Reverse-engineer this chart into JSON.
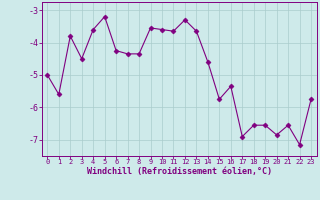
{
  "x": [
    0,
    1,
    2,
    3,
    4,
    5,
    6,
    7,
    8,
    9,
    10,
    11,
    12,
    13,
    14,
    15,
    16,
    17,
    18,
    19,
    20,
    21,
    22,
    23
  ],
  "y": [
    -5.0,
    -5.6,
    -3.8,
    -4.5,
    -3.6,
    -3.2,
    -4.25,
    -4.35,
    -4.35,
    -3.55,
    -3.6,
    -3.65,
    -3.3,
    -3.65,
    -4.6,
    -5.75,
    -5.35,
    -6.9,
    -6.55,
    -6.55,
    -6.85,
    -6.55,
    -7.15,
    -5.75
  ],
  "line_color": "#800080",
  "marker": "D",
  "marker_size": 2.5,
  "bg_color": "#ceeaea",
  "grid_color": "#aacccc",
  "xlabel": "Windchill (Refroidissement éolien,°C)",
  "xlabel_color": "#800080",
  "tick_color": "#800080",
  "spine_color": "#800080",
  "ylim": [
    -7.5,
    -2.75
  ],
  "xlim": [
    -0.5,
    23.5
  ],
  "yticks": [
    -7,
    -6,
    -5,
    -4,
    -3
  ],
  "xticks": [
    0,
    1,
    2,
    3,
    4,
    5,
    6,
    7,
    8,
    9,
    10,
    11,
    12,
    13,
    14,
    15,
    16,
    17,
    18,
    19,
    20,
    21,
    22,
    23
  ],
  "figsize": [
    3.2,
    2.0
  ],
  "dpi": 100
}
